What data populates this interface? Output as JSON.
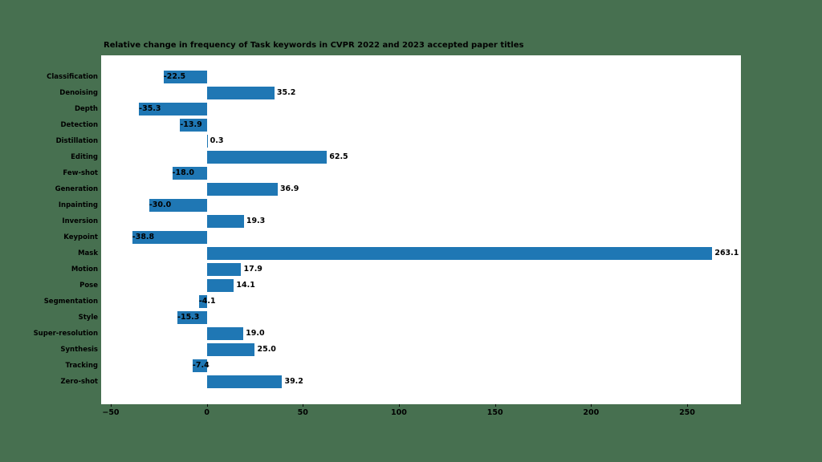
{
  "page": {
    "background_color": "#477050"
  },
  "chart_data": {
    "type": "bar",
    "orientation": "horizontal",
    "title": "Relative change in frequency of Task keywords in CVPR 2022 and 2023 accepted paper titles",
    "categories": [
      "Classification",
      "Denoising",
      "Depth",
      "Detection",
      "Distillation",
      "Editing",
      "Few-shot",
      "Generation",
      "Inpainting",
      "Inversion",
      "Keypoint",
      "Mask",
      "Motion",
      "Pose",
      "Segmentation",
      "Style",
      "Super-resolution",
      "Synthesis",
      "Tracking",
      "Zero-shot"
    ],
    "values": [
      -22.5,
      35.2,
      -35.3,
      -13.9,
      0.3,
      62.5,
      -18.0,
      36.9,
      -30.0,
      19.3,
      -38.8,
      263.1,
      17.9,
      14.1,
      -4.1,
      -15.3,
      19.0,
      25.0,
      -7.4,
      39.2
    ],
    "value_labels": [
      "-22.5",
      "35.2",
      "-35.3",
      "-13.9",
      "0.3",
      "62.5",
      "-18.0",
      "36.9",
      "-30.0",
      "19.3",
      "-38.8",
      "263.1",
      "17.9",
      "14.1",
      "-4.1",
      "-15.3",
      "19.0",
      "25.0",
      "-7.4",
      "39.2"
    ],
    "x_ticks": [
      -50,
      0,
      50,
      100,
      150,
      200,
      250
    ],
    "x_tick_labels": [
      "−50",
      "0",
      "50",
      "100",
      "150",
      "200",
      "250"
    ],
    "xlim": [
      -55,
      278
    ],
    "bar_color": "#1f77b4",
    "plot_background": "#ffffff",
    "text_color": "#000000",
    "grid": false,
    "legend": null
  }
}
